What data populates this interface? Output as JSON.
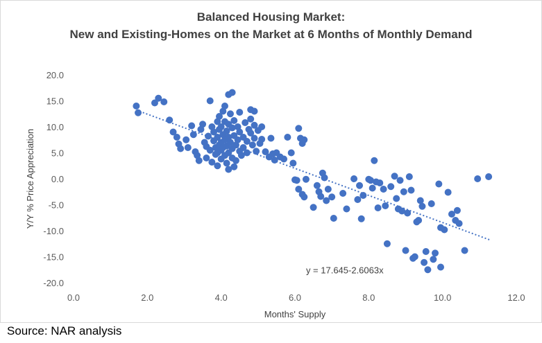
{
  "title_line1": "Balanced Housing Market:",
  "title_line2": "New and Existing-Homes on the Market at 6 Months of Monthly Demand",
  "source": "Source: NAR analysis",
  "colors": {
    "point": "#4472c4",
    "trendline": "#4472c4",
    "text": "#404040",
    "border": "#d9d9d9"
  },
  "chart_data": {
    "type": "scatter",
    "title": "Balanced Housing Market: New and Existing-Homes on the Market at 6 Months of Monthly Demand",
    "xlabel": "Months' Supply",
    "ylabel": "Y/Y % Price Appreciation",
    "xlim": [
      0,
      12
    ],
    "ylim": [
      -20,
      20
    ],
    "x_ticks": [
      "0.0",
      "2.0",
      "4.0",
      "6.0",
      "8.0",
      "10.0",
      "12.0"
    ],
    "y_ticks": [
      "20.0",
      "15.0",
      "10.0",
      "5.0",
      "0.0",
      "-5.0",
      "-10.0",
      "-15.0",
      "-20.0"
    ],
    "grid": false,
    "legend": "none",
    "trendline": {
      "intercept": 17.645,
      "slope": -2.6063,
      "x_range": [
        1.7,
        11.3
      ],
      "label": "y = 17.645-2.6063x",
      "style": "dotted"
    },
    "points": [
      [
        1.7,
        14.0
      ],
      [
        1.75,
        12.7
      ],
      [
        2.2,
        14.6
      ],
      [
        2.3,
        15.5
      ],
      [
        2.45,
        14.8
      ],
      [
        2.6,
        11.3
      ],
      [
        2.7,
        9.0
      ],
      [
        2.8,
        8.0
      ],
      [
        2.85,
        6.7
      ],
      [
        2.9,
        5.8
      ],
      [
        3.05,
        7.5
      ],
      [
        3.1,
        6.0
      ],
      [
        3.2,
        10.2
      ],
      [
        3.25,
        8.5
      ],
      [
        3.3,
        5.2
      ],
      [
        3.35,
        4.5
      ],
      [
        3.4,
        3.5
      ],
      [
        3.45,
        9.5
      ],
      [
        3.5,
        10.5
      ],
      [
        3.55,
        7.0
      ],
      [
        3.6,
        6.2
      ],
      [
        3.6,
        4.0
      ],
      [
        3.65,
        8.2
      ],
      [
        3.7,
        5.5
      ],
      [
        3.7,
        15.0
      ],
      [
        3.75,
        10.0
      ],
      [
        3.75,
        3.2
      ],
      [
        3.8,
        9.0
      ],
      [
        3.8,
        7.3
      ],
      [
        3.85,
        6.0
      ],
      [
        3.85,
        4.7
      ],
      [
        3.9,
        11.0
      ],
      [
        3.9,
        8.0
      ],
      [
        3.9,
        5.0
      ],
      [
        3.9,
        2.5
      ],
      [
        3.95,
        12.0
      ],
      [
        3.95,
        9.5
      ],
      [
        3.95,
        6.5
      ],
      [
        4.0,
        10.0
      ],
      [
        4.0,
        7.0
      ],
      [
        4.0,
        5.5
      ],
      [
        4.0,
        3.8
      ],
      [
        4.05,
        13.0
      ],
      [
        4.05,
        8.5
      ],
      [
        4.05,
        6.0
      ],
      [
        4.1,
        14.0
      ],
      [
        4.1,
        11.0
      ],
      [
        4.1,
        7.5
      ],
      [
        4.1,
        4.5
      ],
      [
        4.15,
        9.2
      ],
      [
        4.15,
        6.3
      ],
      [
        4.15,
        3.0
      ],
      [
        4.2,
        16.2
      ],
      [
        4.2,
        10.5
      ],
      [
        4.2,
        8.0
      ],
      [
        4.2,
        5.0
      ],
      [
        4.2,
        1.8
      ],
      [
        4.25,
        12.5
      ],
      [
        4.25,
        7.0
      ],
      [
        4.3,
        16.6
      ],
      [
        4.3,
        9.8
      ],
      [
        4.3,
        5.8
      ],
      [
        4.3,
        4.0
      ],
      [
        4.35,
        11.2
      ],
      [
        4.35,
        8.3
      ],
      [
        4.35,
        2.3
      ],
      [
        4.4,
        6.5
      ],
      [
        4.4,
        3.5
      ],
      [
        4.45,
        10.0
      ],
      [
        4.45,
        7.5
      ],
      [
        4.5,
        12.8
      ],
      [
        4.5,
        5.3
      ],
      [
        4.5,
        9.0
      ],
      [
        4.55,
        4.5
      ],
      [
        4.6,
        8.0
      ],
      [
        4.6,
        6.0
      ],
      [
        4.65,
        10.8
      ],
      [
        4.7,
        7.2
      ],
      [
        4.7,
        5.0
      ],
      [
        4.75,
        9.5
      ],
      [
        4.8,
        13.3
      ],
      [
        4.8,
        11.5
      ],
      [
        4.8,
        8.8
      ],
      [
        4.85,
        6.5
      ],
      [
        4.9,
        13.0
      ],
      [
        4.9,
        10.3
      ],
      [
        4.9,
        7.8
      ],
      [
        4.95,
        5.3
      ],
      [
        5.0,
        9.3
      ],
      [
        5.05,
        6.8
      ],
      [
        5.1,
        10.0
      ],
      [
        5.1,
        7.6
      ],
      [
        5.2,
        5.2
      ],
      [
        5.3,
        4.2
      ],
      [
        5.35,
        7.8
      ],
      [
        5.4,
        4.8
      ],
      [
        5.45,
        3.6
      ],
      [
        5.5,
        5.0
      ],
      [
        5.6,
        4.2
      ],
      [
        5.7,
        3.8
      ],
      [
        5.8,
        8.0
      ],
      [
        5.9,
        5.0
      ],
      [
        5.95,
        3.0
      ],
      [
        6.0,
        -0.2
      ],
      [
        6.05,
        -0.3
      ],
      [
        6.1,
        9.7
      ],
      [
        6.15,
        7.8
      ],
      [
        6.2,
        6.8
      ],
      [
        6.25,
        7.5
      ],
      [
        6.1,
        -2.0
      ],
      [
        6.2,
        -3.0
      ],
      [
        6.3,
        -0.1
      ],
      [
        6.25,
        -3.5
      ],
      [
        6.5,
        -5.5
      ],
      [
        6.6,
        -1.3
      ],
      [
        6.65,
        -2.5
      ],
      [
        6.7,
        -3.4
      ],
      [
        6.75,
        1.1
      ],
      [
        6.8,
        0.2
      ],
      [
        6.85,
        -4.2
      ],
      [
        6.9,
        -2.0
      ],
      [
        7.0,
        -3.5
      ],
      [
        7.05,
        -7.6
      ],
      [
        7.3,
        -2.8
      ],
      [
        7.4,
        -5.8
      ],
      [
        7.6,
        0.0
      ],
      [
        7.7,
        -4.0
      ],
      [
        7.75,
        -1.3
      ],
      [
        7.8,
        -7.7
      ],
      [
        7.85,
        -3.2
      ],
      [
        8.0,
        -0.1
      ],
      [
        8.05,
        -0.3
      ],
      [
        8.1,
        -1.8
      ],
      [
        8.15,
        3.5
      ],
      [
        8.2,
        -0.6
      ],
      [
        8.25,
        -5.6
      ],
      [
        8.3,
        -0.8
      ],
      [
        8.4,
        -2.0
      ],
      [
        8.45,
        -5.2
      ],
      [
        8.5,
        -12.5
      ],
      [
        8.6,
        -1.5
      ],
      [
        8.7,
        0.5
      ],
      [
        8.75,
        -3.8
      ],
      [
        8.8,
        -5.8
      ],
      [
        8.85,
        -0.3
      ],
      [
        8.9,
        -6.2
      ],
      [
        8.95,
        -2.5
      ],
      [
        9.0,
        -13.8
      ],
      [
        9.05,
        -6.6
      ],
      [
        9.1,
        0.4
      ],
      [
        9.15,
        -2.2
      ],
      [
        9.2,
        -15.3
      ],
      [
        9.25,
        -15.0
      ],
      [
        9.3,
        -8.3
      ],
      [
        9.35,
        -8.0
      ],
      [
        9.4,
        -4.2
      ],
      [
        9.45,
        -5.3
      ],
      [
        9.5,
        -16.1
      ],
      [
        9.55,
        -14.0
      ],
      [
        9.6,
        -17.5
      ],
      [
        9.7,
        -4.8
      ],
      [
        9.75,
        -15.5
      ],
      [
        9.8,
        -14.3
      ],
      [
        9.9,
        -1.0
      ],
      [
        9.95,
        -9.4
      ],
      [
        9.95,
        -17.0
      ],
      [
        10.05,
        -9.8
      ],
      [
        10.15,
        -2.6
      ],
      [
        10.25,
        -6.8
      ],
      [
        10.35,
        -8.0
      ],
      [
        10.4,
        -6.1
      ],
      [
        10.45,
        -8.6
      ],
      [
        10.6,
        -13.8
      ],
      [
        10.95,
        0.0
      ],
      [
        11.25,
        0.4
      ]
    ]
  }
}
